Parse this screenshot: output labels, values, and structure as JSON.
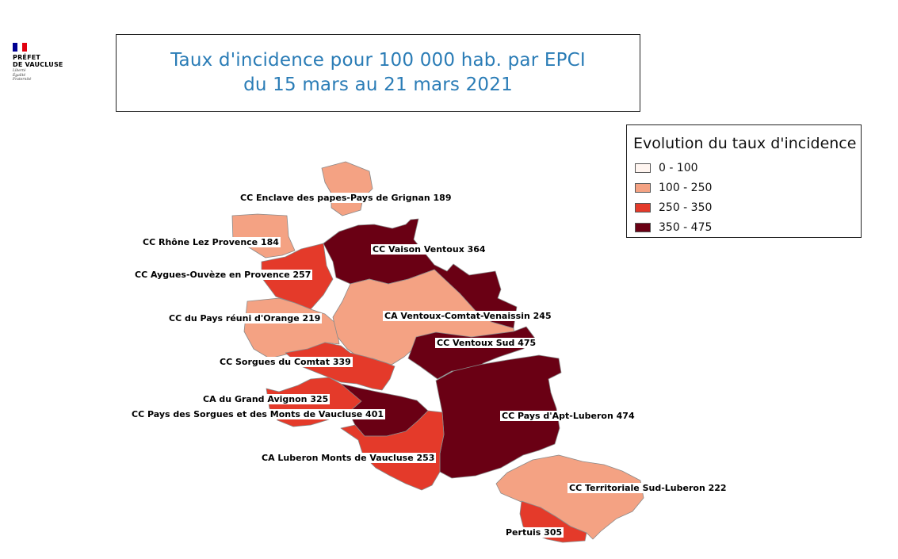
{
  "logo": {
    "flag_colors": [
      "#000091",
      "#ffffff",
      "#e1000f"
    ],
    "line1": "PRÉFET",
    "line2": "DE VAUCLUSE",
    "motto": [
      "Liberté",
      "Égalité",
      "Fraternité"
    ]
  },
  "title": {
    "line1": "Taux d'incidence pour 100 000 hab. par EPCI",
    "line2": "du 15  mars au 21 mars 2021",
    "color": "#2a7cb6"
  },
  "legend": {
    "title": "Evolution du taux d'incidence",
    "classes": [
      {
        "label": "0 - 100",
        "color": "#fff5f0"
      },
      {
        "label": "100 - 250",
        "color": "#f4a283"
      },
      {
        "label": "250 - 350",
        "color": "#e43a2a"
      },
      {
        "label": "350 - 475",
        "color": "#6a0014"
      }
    ]
  },
  "border_color": "#8a8a8a",
  "regions": [
    {
      "id": "enclave",
      "name": "CC Enclave des papes-Pays de Grignan",
      "value": 189,
      "label": "CC Enclave des papes-Pays de Grignan  189"
    },
    {
      "id": "rhone-lez",
      "name": "CC Rhône Lez Provence",
      "value": 184,
      "label": "CC Rhône Lez Provence  184"
    },
    {
      "id": "aygues-ouveze",
      "name": "CC Aygues-Ouvèze en Provence",
      "value": 257,
      "label": "CC Aygues-Ouvèze en Provence  257"
    },
    {
      "id": "vaison",
      "name": "CC Vaison Ventoux",
      "value": 364,
      "label": "CC Vaison Ventoux  364"
    },
    {
      "id": "orange",
      "name": "CC du Pays réuni d'Orange",
      "value": 219,
      "label": "CC du Pays réuni d'Orange  219"
    },
    {
      "id": "cove",
      "name": "CA Ventoux-Comtat-Venaissin",
      "value": 245,
      "label": "CA Ventoux-Comtat-Venaissin  245"
    },
    {
      "id": "ventoux-sud",
      "name": "CC Ventoux Sud",
      "value": 475,
      "label": "CC Ventoux Sud  475"
    },
    {
      "id": "sorgues",
      "name": "CC Sorgues du Comtat",
      "value": 339,
      "label": "CC Sorgues du Comtat  339"
    },
    {
      "id": "avignon",
      "name": "CA du Grand Avignon",
      "value": 325,
      "label": "CA du Grand Avignon  325"
    },
    {
      "id": "pays-sorgues",
      "name": "CC Pays des Sorgues et des Monts de Vaucluse",
      "value": 401,
      "label": "CC Pays des Sorgues et des Monts de Vaucluse  401"
    },
    {
      "id": "apt",
      "name": "CC Pays d'Apt-Luberon",
      "value": 474,
      "label": "CC Pays d'Apt-Luberon  474"
    },
    {
      "id": "lmv",
      "name": "CA Luberon Monts de Vaucluse",
      "value": 253,
      "label": "CA Luberon Monts de Vaucluse  253"
    },
    {
      "id": "sud-luberon",
      "name": "CC Territoriale Sud-Luberon",
      "value": 222,
      "label": "CC Territoriale Sud-Luberon  222"
    },
    {
      "id": "pertuis",
      "name": "Pertuis",
      "value": 305,
      "label": "Pertuis  305"
    }
  ]
}
